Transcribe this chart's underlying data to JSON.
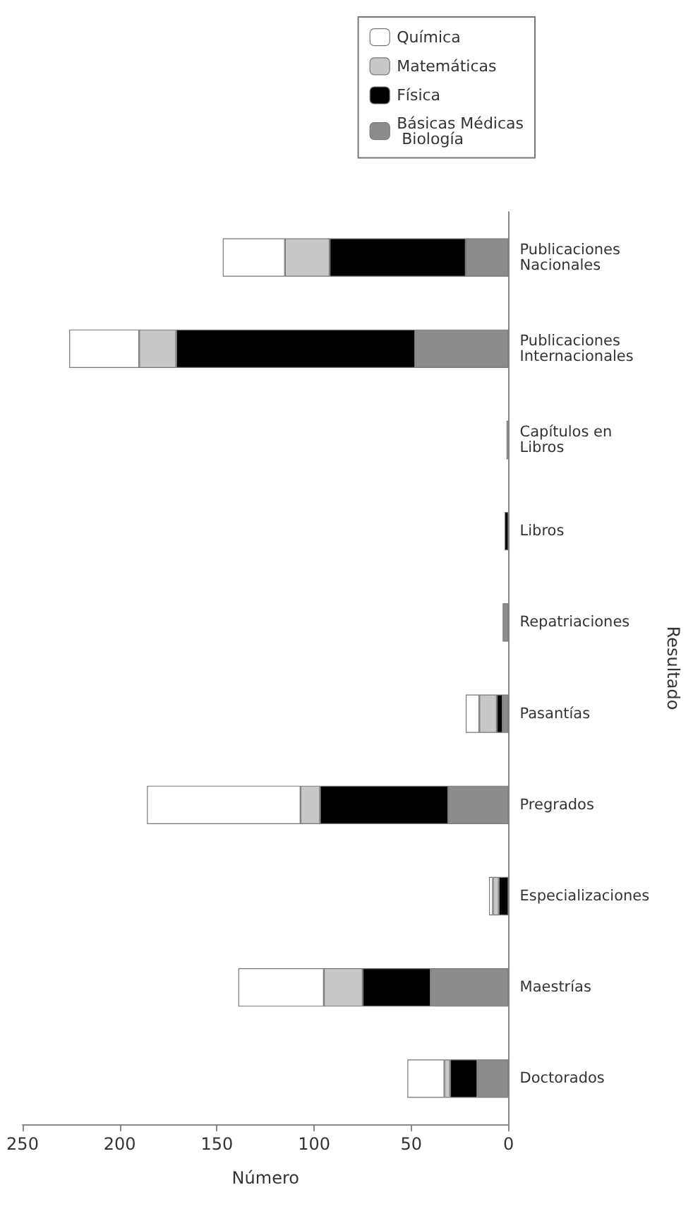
{
  "chart_data": {
    "type": "bar",
    "orientation": "horizontal",
    "stacked": true,
    "xlabel": "Número",
    "ylabel": "Resultado",
    "categories": [
      "Publicaciones Nacionales",
      "Publicaciones Internacionales",
      "Capítulos en Libros",
      "Libros",
      "Repatriaciones",
      "Pasantías",
      "Pregrados",
      "Especializaciones",
      "Maestrías",
      "Doctorados"
    ],
    "series": [
      {
        "name": "Básicas Médicas Biología",
        "color": "#8c8c8c",
        "values": [
          22,
          48,
          0,
          0,
          3,
          3,
          31,
          0,
          40,
          16
        ]
      },
      {
        "name": "Física",
        "color": "#000000",
        "values": [
          70,
          123,
          0,
          2,
          0,
          3,
          66,
          5,
          35,
          14
        ]
      },
      {
        "name": "Matemáticas",
        "color": "#c8c8c8",
        "values": [
          23,
          19,
          1,
          0,
          0,
          9,
          10,
          3,
          20,
          3
        ]
      },
      {
        "name": "Química",
        "color": "#ffffff",
        "values": [
          32,
          36,
          0,
          0,
          0,
          7,
          79,
          2,
          44,
          19
        ]
      }
    ],
    "xlim": [
      250,
      0
    ],
    "xticks": [
      0,
      50,
      100,
      150,
      200,
      250
    ],
    "grid": false,
    "legend": "top right"
  }
}
